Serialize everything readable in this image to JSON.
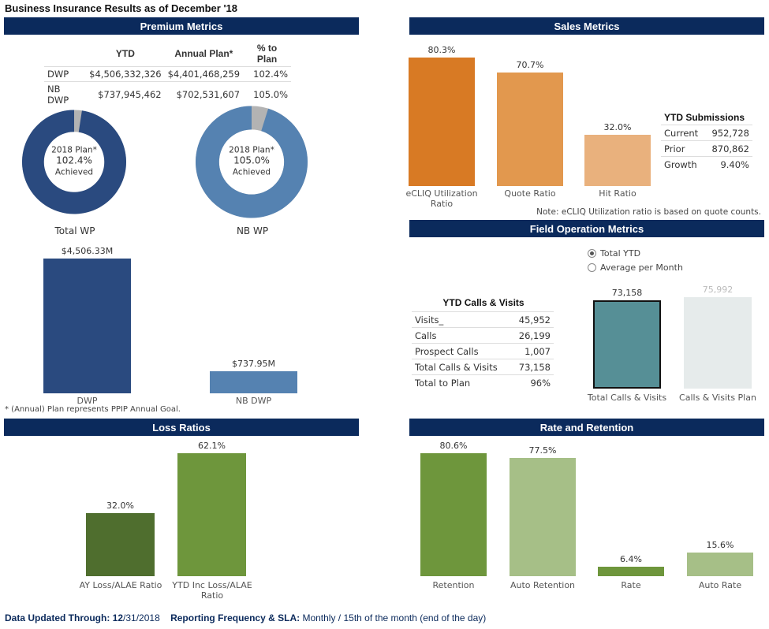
{
  "page_title": "Business Insurance Results as of December '18",
  "premium": {
    "header": "Premium Metrics",
    "table": {
      "columns": [
        "",
        "YTD",
        "Annual Plan*",
        "% to Plan"
      ],
      "rows": [
        [
          "DWP",
          "$4,506,332,326",
          "$4,401,468,259",
          "102.4%"
        ],
        [
          "NB DWP",
          "$737,945,462",
          "$702,531,607",
          "105.0%"
        ]
      ]
    },
    "donuts": [
      {
        "line1": "2018 Plan*",
        "line2": "102.4%",
        "line3": "Achieved",
        "label": "Total WP",
        "fraction": 0.976,
        "color": "#2a4a7f"
      },
      {
        "line1": "2018 Plan*",
        "line2": "105.0%",
        "line3": "Achieved",
        "label": "NB WP",
        "fraction": 0.952,
        "color": "#5582b1"
      }
    ],
    "footnote": "* (Annual) Plan represents PPIP Annual Goal."
  },
  "chart_data": [
    {
      "type": "bar",
      "name": "premium-bars",
      "categories": [
        "DWP",
        "NB DWP"
      ],
      "values": [
        4506.33,
        737.95
      ],
      "data_labels": [
        "$4,506.33M",
        "$737.95M"
      ],
      "ylim": [
        0,
        4506.33
      ],
      "colors": [
        "#2a4a7f",
        "#5582b1"
      ]
    },
    {
      "type": "bar",
      "name": "sales-bars",
      "categories": [
        "eCLIQ Utilization Ratio",
        "Quote Ratio",
        "Hit Ratio"
      ],
      "values": [
        80.3,
        70.7,
        32.0
      ],
      "data_labels": [
        "80.3%",
        "70.7%",
        "32.0%"
      ],
      "ylim": [
        0,
        80.3
      ],
      "colors": [
        "#d87a24",
        "#e2984e",
        "#e9b17d"
      ]
    },
    {
      "type": "bar",
      "name": "field-bars",
      "categories": [
        "Total Calls & Visits",
        "Calls & Visits Plan"
      ],
      "values": [
        73158,
        75992
      ],
      "data_labels": [
        "73,158",
        "75,992"
      ],
      "ylim": [
        0,
        75992
      ],
      "colors": [
        "#568f96",
        "#e6ebeb"
      ]
    },
    {
      "type": "bar",
      "name": "loss-bars",
      "categories": [
        "AY Loss/ALAE Ratio",
        "YTD Inc Loss/ALAE Ratio"
      ],
      "values": [
        32.0,
        62.1
      ],
      "data_labels": [
        "32.0%",
        "62.1%"
      ],
      "ylim": [
        0,
        62.1
      ],
      "colors": [
        "#4f6e2e",
        "#6e963c"
      ]
    },
    {
      "type": "bar",
      "name": "retention-bars",
      "categories": [
        "Retention",
        "Auto Retention",
        "Rate",
        "Auto Rate"
      ],
      "values": [
        80.6,
        77.5,
        6.4,
        15.6
      ],
      "data_labels": [
        "80.6%",
        "77.5%",
        "6.4%",
        "15.6%"
      ],
      "ylim": [
        0,
        80.6
      ],
      "colors": [
        "#6e963c",
        "#a6bf87",
        "#6e963c",
        "#a6bf87"
      ]
    }
  ],
  "sales": {
    "header": "Sales Metrics",
    "submissions_title": "YTD Submissions",
    "submissions": [
      [
        "Current",
        "952,728"
      ],
      [
        "Prior",
        "870,862"
      ],
      [
        "Growth",
        "9.40%"
      ]
    ],
    "note": "Note: eCLIQ Utilization ratio is based on quote counts."
  },
  "field": {
    "header": "Field Operation Metrics",
    "radio": [
      {
        "label": "Total YTD",
        "selected": true
      },
      {
        "label": "Average per Month",
        "selected": false
      }
    ],
    "calls_title": "YTD Calls & Visits",
    "calls": [
      [
        "Visits_",
        "45,952"
      ],
      [
        "Calls",
        "26,199"
      ],
      [
        "Prospect Calls",
        "1,007"
      ],
      [
        "Total Calls & Visits",
        "73,158"
      ],
      [
        "Total to Plan",
        "96%"
      ]
    ]
  },
  "loss": {
    "header": "Loss Ratios"
  },
  "retention": {
    "header": "Rate and Retention"
  },
  "footer": {
    "updated_label": "Data Updated Through:",
    "updated_value_bold": "12",
    "updated_value": "/31/2018",
    "sla_label": "Reporting Frequency & SLA:",
    "sla_value": "Monthly / 15th of the month (end of the day)"
  }
}
